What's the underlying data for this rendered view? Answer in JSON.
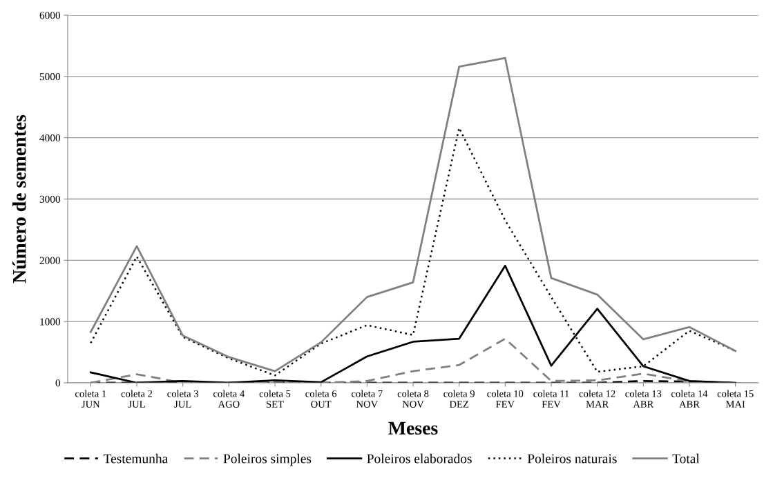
{
  "chart_data": {
    "type": "line",
    "xlabel": "Meses",
    "ylabel": "Número de sementes",
    "categories": [
      "coleta 1\nJUN",
      "coleta 2\nJUL",
      "coleta 3\nJUL",
      "coleta 4\nAGO",
      "coleta 5\nSET",
      "coleta 6\nOUT",
      "coleta 7\nNOV",
      "coleta 8\nNOV",
      "coleta 9\nDEZ",
      "coleta 10\nFEV",
      "coleta 11\nFEV",
      "coleta 12\nMAR",
      "coleta 13\nABR",
      "coleta 14\nABR",
      "coleta 15\nMAI"
    ],
    "series": [
      {
        "name": "Testemunha",
        "color": "#000000",
        "line_style": "dashed",
        "values": [
          0,
          0,
          0,
          0,
          0,
          0,
          0,
          0,
          0,
          0,
          0,
          0,
          30,
          20,
          0
        ]
      },
      {
        "name": "Poleiros simples",
        "color": "#808080",
        "line_style": "dashed",
        "values": [
          0,
          140,
          0,
          0,
          20,
          0,
          30,
          190,
          290,
          720,
          30,
          40,
          150,
          20,
          0
        ]
      },
      {
        "name": "Poleiros elaborados",
        "color": "#000000",
        "line_style": "solid",
        "values": [
          170,
          0,
          30,
          0,
          40,
          10,
          430,
          670,
          720,
          1910,
          280,
          1210,
          270,
          30,
          0
        ]
      },
      {
        "name": "Poleiros naturais",
        "color": "#000000",
        "line_style": "dotted",
        "values": [
          650,
          2060,
          750,
          400,
          120,
          640,
          940,
          780,
          4160,
          2650,
          1400,
          180,
          270,
          850,
          520
        ]
      },
      {
        "name": "Total",
        "color": "#808080",
        "line_style": "solid",
        "values": [
          830,
          2230,
          770,
          420,
          190,
          660,
          1400,
          1640,
          5160,
          5300,
          1710,
          1440,
          710,
          910,
          520
        ]
      }
    ],
    "ylim": [
      0,
      6000
    ],
    "yticks": [
      0,
      1000,
      2000,
      3000,
      4000,
      5000,
      6000
    ],
    "grid": "y",
    "legend": "bottom",
    "marker": "none"
  }
}
